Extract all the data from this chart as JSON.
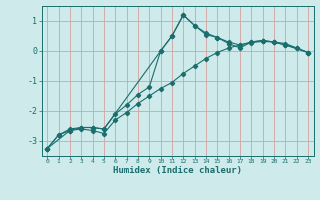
{
  "xlabel": "Humidex (Indice chaleur)",
  "background_color": "#ceeaea",
  "grid_color": "#d4a0a0",
  "line_color": "#1a6e6e",
  "xlim": [
    -0.5,
    23.5
  ],
  "ylim": [
    -3.5,
    1.5
  ],
  "xticks": [
    0,
    1,
    2,
    3,
    4,
    5,
    6,
    7,
    8,
    9,
    10,
    11,
    12,
    13,
    14,
    15,
    16,
    17,
    18,
    19,
    20,
    21,
    22,
    23
  ],
  "yticks": [
    -3,
    -2,
    -1,
    0,
    1
  ],
  "line1_x": [
    0,
    1,
    2,
    3,
    4,
    5,
    6,
    7,
    8,
    9,
    10,
    11,
    12,
    13,
    14,
    15,
    16,
    17,
    18,
    19,
    20,
    21,
    22,
    23
  ],
  "line1_y": [
    -3.25,
    -2.8,
    -2.6,
    -2.55,
    -2.55,
    -2.6,
    -2.1,
    -1.8,
    -1.45,
    -1.2,
    0.0,
    0.5,
    1.2,
    0.85,
    0.55,
    0.45,
    0.25,
    0.1,
    0.3,
    0.35,
    0.3,
    0.2,
    0.1,
    -0.05
  ],
  "line2_x": [
    0,
    1,
    2,
    3,
    4,
    5,
    6,
    7,
    8,
    9,
    10,
    11,
    12,
    13,
    14,
    15,
    16,
    17,
    18,
    19,
    20,
    21,
    22,
    23
  ],
  "line2_y": [
    -3.25,
    -2.8,
    -2.65,
    -2.6,
    -2.65,
    -2.75,
    -2.3,
    -2.05,
    -1.75,
    -1.5,
    -1.25,
    -1.05,
    -0.75,
    -0.5,
    -0.25,
    -0.05,
    0.1,
    0.2,
    0.28,
    0.32,
    0.3,
    0.25,
    0.1,
    -0.05
  ],
  "line3_x": [
    0,
    2,
    3,
    4,
    5,
    10,
    11,
    12,
    13,
    14,
    15,
    16,
    17,
    18,
    19,
    20,
    21,
    23
  ],
  "line3_y": [
    -3.25,
    -2.65,
    -2.55,
    -2.55,
    -2.6,
    0.0,
    0.5,
    1.2,
    0.85,
    0.6,
    0.45,
    0.3,
    0.2,
    0.3,
    0.35,
    0.3,
    0.2,
    -0.05
  ]
}
